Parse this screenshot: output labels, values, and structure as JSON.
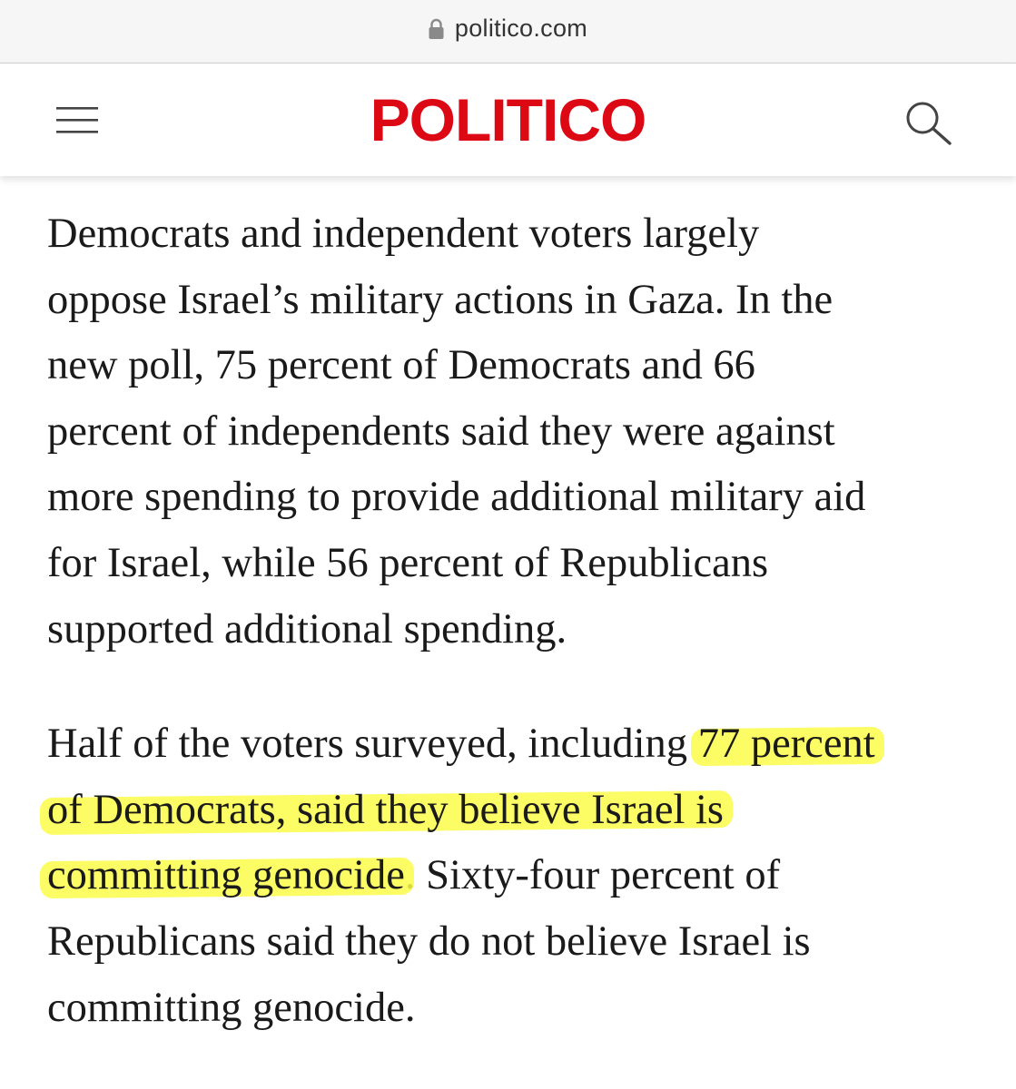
{
  "browser": {
    "url": "politico.com",
    "lock_icon": "lock-icon"
  },
  "header": {
    "menu_icon": "hamburger-menu-icon",
    "logo_text": "POLITICO",
    "search_icon": "search-icon",
    "brand_color": "#dc0814"
  },
  "article": {
    "highlight_color": "#fbfb4a",
    "paragraph1": {
      "lines": [
        "Democrats and independent voters largely",
        "oppose Israel’s military actions in Gaza. In the",
        "new poll, 75 percent of Democrats and 66",
        "percent of independents said they were against",
        "more spending to provide additional military aid",
        "for Israel, while 56 percent of Republicans",
        "supported additional spending."
      ]
    },
    "paragraph2": {
      "line1_plain": "Half of the voters surveyed, including ",
      "line1_highlight": "77 percent",
      "line2_highlight": "of Democrats, said they believe Israel is",
      "line3_highlight": "committing genocide",
      "line3_plain": ". Sixty-four percent of",
      "line4": "Republicans said they do not believe Israel is",
      "line5": "committing genocide."
    }
  }
}
